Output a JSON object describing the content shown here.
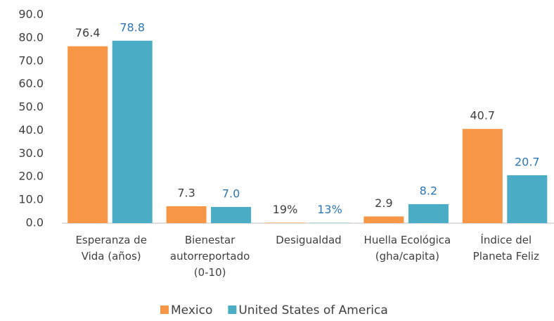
{
  "chart_data": {
    "type": "bar",
    "categories": [
      "Esperanza de Vida (años)",
      "Bienestar autorreportado (0-10)",
      "Desigualdad",
      "Huella Ecológica (gha/capita)",
      "Índice del Planeta Feliz"
    ],
    "series": [
      {
        "name": "Mexico",
        "color": "#f79646",
        "label_color": "#404040",
        "values": [
          76.4,
          7.3,
          0.19,
          2.9,
          40.7
        ],
        "value_labels": [
          "76.4",
          "7.3",
          "19%",
          "2.9",
          "40.7"
        ]
      },
      {
        "name": "United States of America",
        "color": "#4bacc6",
        "label_color": "#2e75b6",
        "values": [
          78.8,
          7.0,
          0.13,
          8.2,
          20.7
        ],
        "value_labels": [
          "78.8",
          "7.0",
          "13%",
          "8.2",
          "20.7"
        ]
      }
    ],
    "ylim": [
      0,
      90
    ],
    "yticks": [
      {
        "value": 0,
        "label": "0.0"
      },
      {
        "value": 10,
        "label": "10.0"
      },
      {
        "value": 20,
        "label": "20.0"
      },
      {
        "value": 30,
        "label": "30.0"
      },
      {
        "value": 40,
        "label": "40.0"
      },
      {
        "value": 50,
        "label": "50.0"
      },
      {
        "value": 60,
        "label": "60.0"
      },
      {
        "value": 70,
        "label": "70.0"
      },
      {
        "value": 80,
        "label": "80.0"
      },
      {
        "value": 90,
        "label": "90.0"
      }
    ],
    "grid": false,
    "legend": "bottom"
  }
}
